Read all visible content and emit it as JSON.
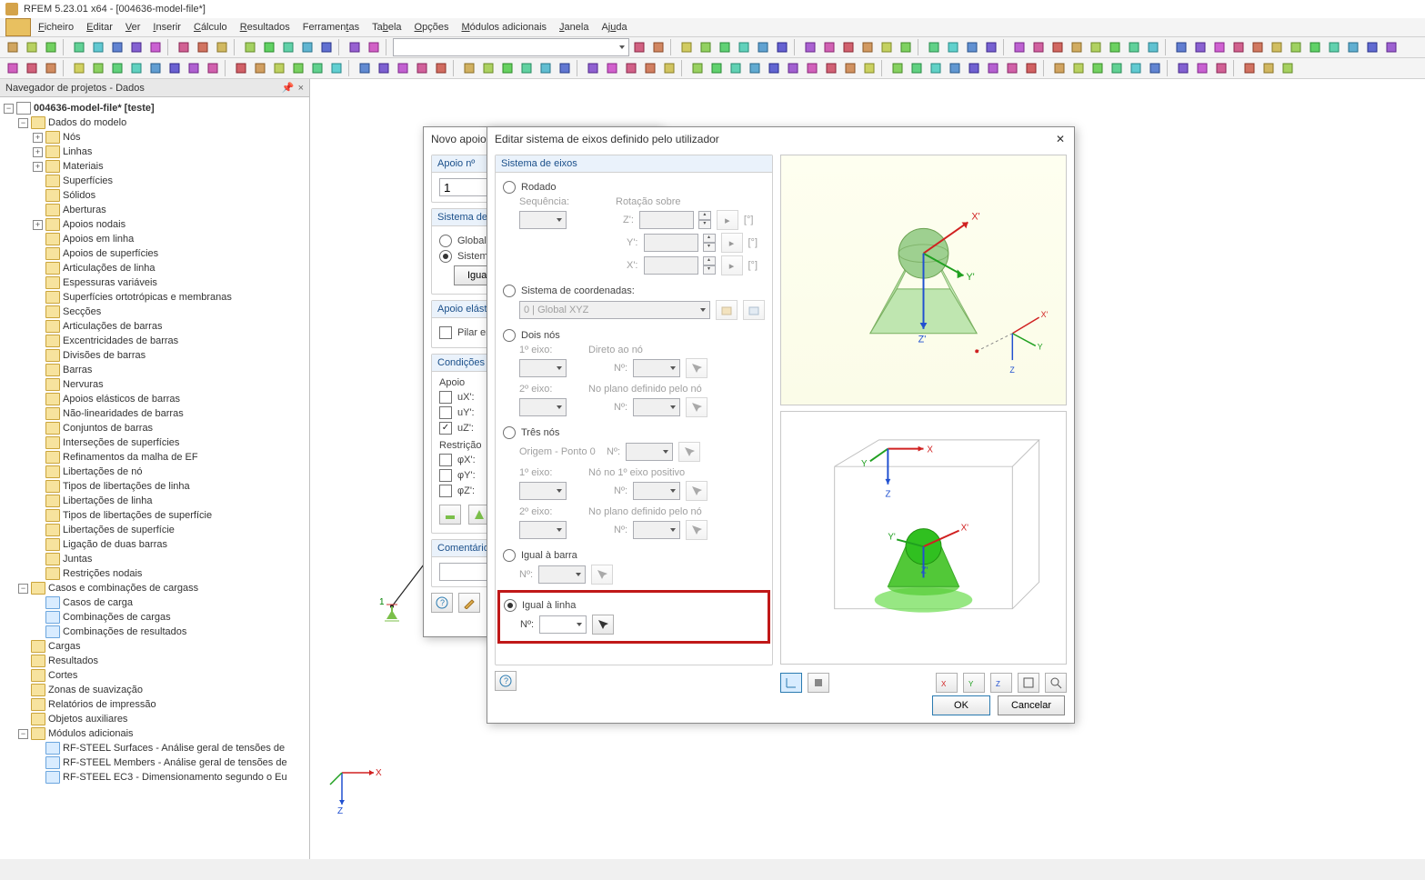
{
  "app": {
    "title": "RFEM 5.23.01 x64 - [004636-model-file*]"
  },
  "menu": [
    "Ficheiro",
    "Editar",
    "Ver",
    "Inserir",
    "Cálculo",
    "Resultados",
    "Ferramentas",
    "Tabela",
    "Opções",
    "Módulos adicionais",
    "Janela",
    "Ajuda"
  ],
  "sidebar": {
    "title": "Navegador de projetos - Dados",
    "root": "004636-model-file* [teste]",
    "model_data": "Dados do modelo",
    "items": [
      "Nós",
      "Linhas",
      "Materiais",
      "Superfícies",
      "Sólidos",
      "Aberturas",
      "Apoios nodais",
      "Apoios em linha",
      "Apoios de superfícies",
      "Articulações de linha",
      "Espessuras variáveis",
      "Superfícies ortotrópicas e membranas",
      "Secções",
      "Articulações de barras",
      "Excentricidades de barras",
      "Divisões de barras",
      "Barras",
      "Nervuras",
      "Apoios elásticos de barras",
      "Não-linearidades de barras",
      "Conjuntos de barras",
      "Interseções de superfícies",
      "Refinamentos da malha de EF",
      "Libertações de nó",
      "Tipos de libertações de linha",
      "Libertações de linha",
      "Tipos de libertações de superfície",
      "Libertações de superfície",
      "Ligação de duas barras",
      "Juntas",
      "Restrições nodais"
    ],
    "loadcases": "Casos e combinações de cargass",
    "loadcases_items": [
      "Casos de carga",
      "Combinações de cargas",
      "Combinações de resultados"
    ],
    "extra": [
      "Cargas",
      "Resultados",
      "Cortes",
      "Zonas de suavização",
      "Relatórios de impressão",
      "Objetos auxiliares",
      "Módulos adicionais"
    ],
    "modules": [
      "RF-STEEL Surfaces - Análise geral de tensões de",
      "RF-STEEL Members - Análise geral de tensões de",
      "RF-STEEL EC3 - Dimensionamento segundo o Eu"
    ]
  },
  "dlg1": {
    "title": "Novo apoio n",
    "g_num": "Apoio nº",
    "num_val": "1",
    "g_axis": "Sistema de eix",
    "r_global": "Global X,Y,",
    "r_sys": "Sistema de",
    "btn_equal": "Igual à lin",
    "g_elast": "Apoio elástico",
    "chk_pilar": "Pilar em Z.",
    "g_cond": "Condições de",
    "lbl_apoio": "Apoio",
    "ux": "uX':",
    "uy": "uY':",
    "uz": "uZ':",
    "lbl_restr": "Restrição",
    "fx": "φX':",
    "fy": "φY':",
    "fz": "φZ':",
    "g_com": "Comentário"
  },
  "dlg2": {
    "title": "Editar sistema de eixos definido pelo utilizador",
    "g_sys": "Sistema de eixos",
    "r_rod": "Rodado",
    "lbl_seq": "Sequência:",
    "lbl_rot": "Rotação sobre",
    "z": "Z':",
    "y": "Y':",
    "x": "X':",
    "deg": "[°]",
    "r_coord": "Sistema de coordenadas:",
    "coord_val": "0 | Global XYZ",
    "r_dois": "Dois nós",
    "eixo1": "1º eixo:",
    "direto": "Direto ao nó",
    "no": "Nº:",
    "eixo2": "2º eixo:",
    "plano": "No plano definido pelo nó",
    "r_tres": "Três nós",
    "origem": "Origem - Ponto 0",
    "nopos": "Nó no 1º eixo positivo",
    "r_barra": "Igual à barra",
    "r_linha": "Igual à linha",
    "ok": "OK",
    "cancel": "Cancelar"
  },
  "axes": {
    "x": "X",
    "y": "Y",
    "z": "Z",
    "xp": "X'",
    "yp": "Y'",
    "zp": "Z'"
  }
}
